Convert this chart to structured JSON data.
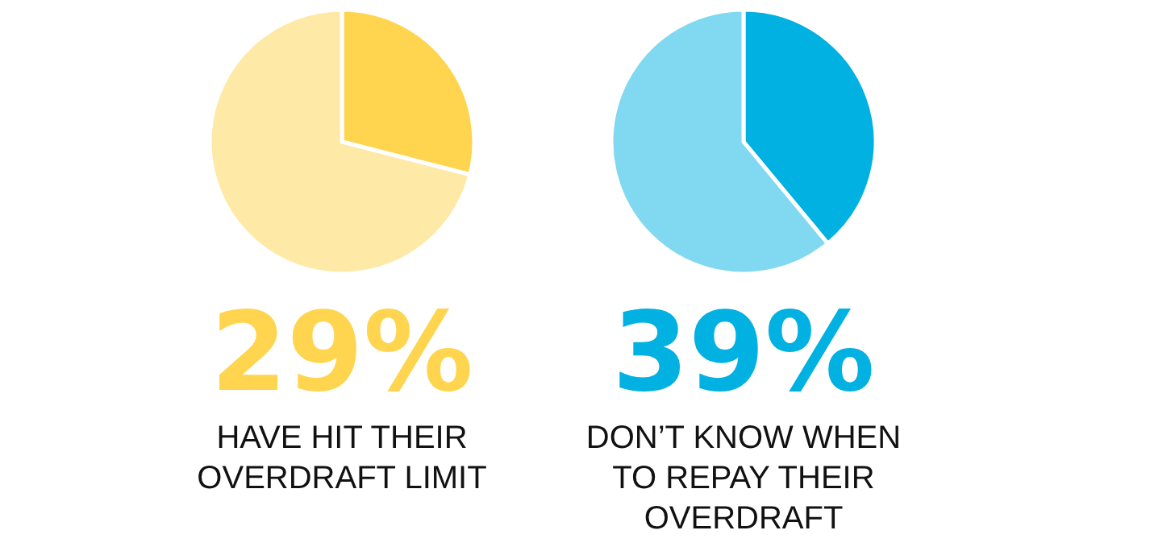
{
  "chart_data": [
    {
      "type": "pie",
      "title": "29%",
      "subtitle": "HAVE HIT THEIR OVERDRAFT LIMIT",
      "categories": [
        null,
        null
      ],
      "values": [
        29,
        71
      ],
      "colors": [
        "#ffd54f",
        "#ffe9a6"
      ]
    },
    {
      "type": "pie",
      "title": "39%",
      "subtitle": "DON’T KNOW WHEN TO REPAY THEIR OVERDRAFT",
      "categories": [
        null,
        null
      ],
      "values": [
        39,
        61
      ],
      "colors": [
        "#00b1e1",
        "#80d8f1"
      ]
    }
  ]
}
